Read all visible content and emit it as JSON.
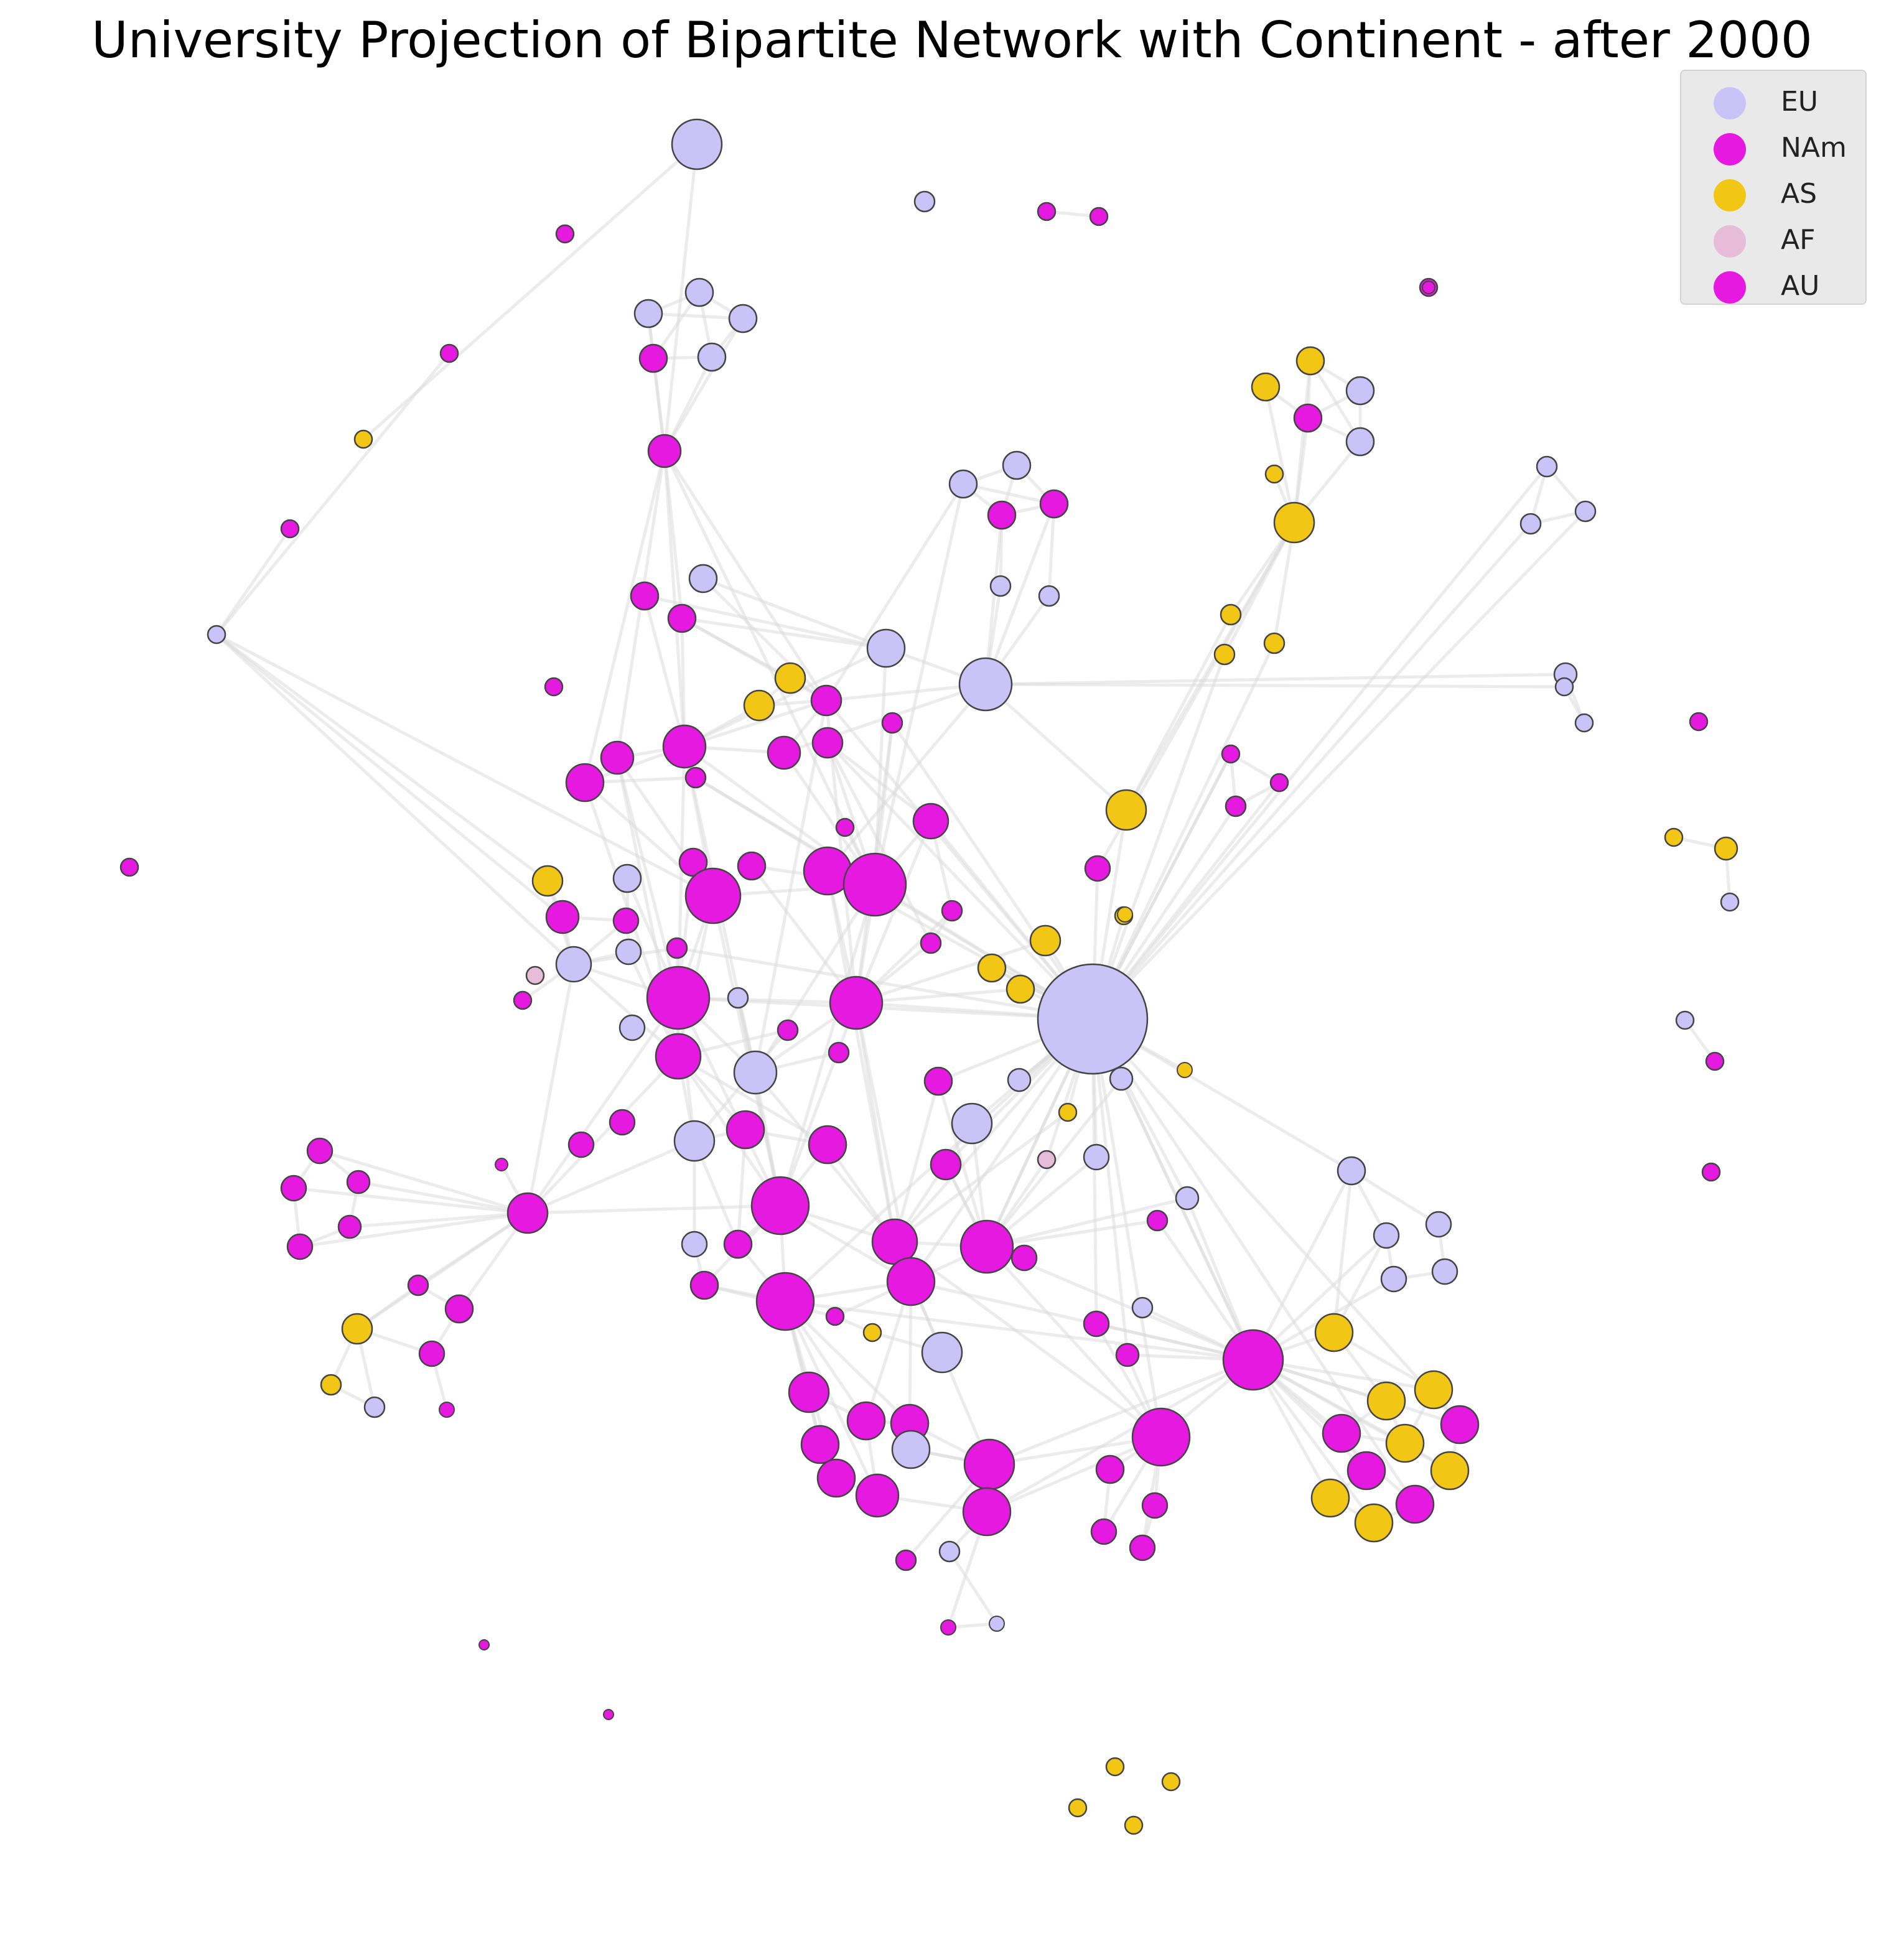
{
  "title": "University Projection of Bipartite Network with Continent - after 2000",
  "legend": [
    {
      "label": "EU",
      "color": "#c9c3f7"
    },
    {
      "label": "NAm",
      "color": "#e619e0"
    },
    {
      "label": "AS",
      "color": "#f2c614"
    },
    {
      "label": "AF",
      "color": "#e6bcd8"
    },
    {
      "label": "AU",
      "color": "#e619e0"
    }
  ],
  "colors": {
    "EU": "#c9c3f7",
    "NAm": "#e619e0",
    "AS": "#f2c614",
    "AF": "#e6bcd8",
    "edge": "#d9d9d9",
    "node_outline": "#444444"
  }
}
